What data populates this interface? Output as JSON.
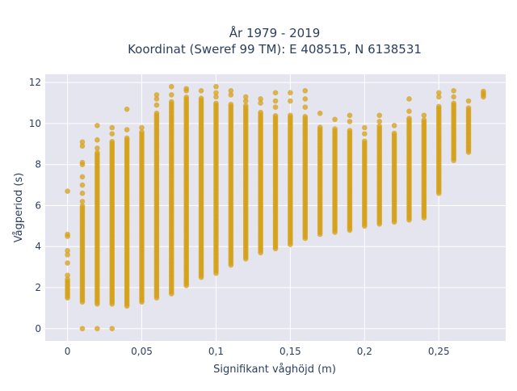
{
  "chart_data": {
    "type": "scatter",
    "title_lines": [
      "År 1979 - 2019",
      "Koordinat (Sweref 99 TM): E 408515, N 6138531"
    ],
    "xlabel": "Signifikant våghöjd (m)",
    "ylabel": "Vågperiod (s)",
    "xlim": [
      -0.015,
      0.295
    ],
    "ylim": [
      -0.6,
      12.4
    ],
    "x_ticks": [
      0,
      0.05,
      0.1,
      0.15,
      0.2,
      0.25
    ],
    "x_tick_labels": [
      "0",
      "0,05",
      "0,1",
      "0,15",
      "0,2",
      "0,25"
    ],
    "y_ticks": [
      0,
      2,
      4,
      6,
      8,
      10,
      12
    ],
    "y_tick_labels": [
      "0",
      "2",
      "4",
      "6",
      "8",
      "10",
      "12"
    ],
    "grid": true,
    "marker_color": "#D4A017",
    "plot_bg": "#E5E5EF",
    "columns": [
      {
        "x": 0.0,
        "min": 1.5,
        "max": 2.4,
        "outliers": [
          2.6,
          3.2,
          3.6,
          3.8,
          4.5,
          4.6,
          6.7
        ]
      },
      {
        "x": 0.01,
        "min": 1.3,
        "max": 6.0,
        "outliers": [
          0,
          6.2,
          6.6,
          7.0,
          7.4,
          8.0,
          8.1,
          8.9,
          9.1
        ]
      },
      {
        "x": 0.02,
        "min": 1.2,
        "max": 8.6,
        "outliers": [
          0,
          8.8,
          9.2,
          9.9
        ]
      },
      {
        "x": 0.03,
        "min": 1.2,
        "max": 9.2,
        "outliers": [
          0,
          9.5,
          9.8
        ]
      },
      {
        "x": 0.04,
        "min": 1.1,
        "max": 9.3,
        "outliers": [
          9.7,
          10.7
        ]
      },
      {
        "x": 0.05,
        "min": 1.3,
        "max": 9.6,
        "outliers": [
          9.8
        ]
      },
      {
        "x": 0.06,
        "min": 1.5,
        "max": 10.5,
        "outliers": [
          10.9,
          11.2,
          11.4
        ]
      },
      {
        "x": 0.07,
        "min": 1.7,
        "max": 11.1,
        "outliers": [
          11.4,
          11.8
        ]
      },
      {
        "x": 0.08,
        "min": 2.1,
        "max": 11.3,
        "outliers": [
          11.6,
          11.7
        ]
      },
      {
        "x": 0.09,
        "min": 2.5,
        "max": 11.3,
        "outliers": [
          11.6
        ]
      },
      {
        "x": 0.1,
        "min": 2.8,
        "max": 11.0,
        "outliers": [
          11.3,
          11.5,
          11.8,
          2.7
        ]
      },
      {
        "x": 0.11,
        "min": 3.1,
        "max": 11.0,
        "outliers": [
          11.4,
          11.6
        ]
      },
      {
        "x": 0.12,
        "min": 3.4,
        "max": 10.9,
        "outliers": [
          11.1,
          11.3
        ]
      },
      {
        "x": 0.13,
        "min": 3.7,
        "max": 10.6,
        "outliers": [
          11.0,
          11.2
        ]
      },
      {
        "x": 0.14,
        "min": 3.9,
        "max": 10.4,
        "outliers": [
          10.8,
          11.1,
          11.5
        ]
      },
      {
        "x": 0.15,
        "min": 4.1,
        "max": 10.4,
        "outliers": [
          11.1,
          11.5
        ]
      },
      {
        "x": 0.16,
        "min": 4.4,
        "max": 10.4,
        "outliers": [
          10.8,
          11.2,
          11.6
        ]
      },
      {
        "x": 0.17,
        "min": 4.6,
        "max": 9.9,
        "outliers": [
          10.5
        ]
      },
      {
        "x": 0.18,
        "min": 4.7,
        "max": 9.8,
        "outliers": [
          10.2
        ]
      },
      {
        "x": 0.19,
        "min": 4.8,
        "max": 9.7,
        "outliers": [
          10.1,
          10.4
        ]
      },
      {
        "x": 0.2,
        "min": 5.0,
        "max": 9.2,
        "outliers": [
          9.5,
          9.8
        ]
      },
      {
        "x": 0.21,
        "min": 5.1,
        "max": 9.9,
        "outliers": [
          10.1,
          10.4
        ]
      },
      {
        "x": 0.22,
        "min": 5.2,
        "max": 9.6,
        "outliers": [
          9.9
        ]
      },
      {
        "x": 0.23,
        "min": 5.3,
        "max": 10.3,
        "outliers": [
          10.6,
          11.2
        ]
      },
      {
        "x": 0.24,
        "min": 5.4,
        "max": 10.2,
        "outliers": [
          10.4
        ]
      },
      {
        "x": 0.25,
        "min": 6.6,
        "max": 10.9,
        "outliers": [
          11.3,
          11.5
        ]
      },
      {
        "x": 0.26,
        "min": 8.2,
        "max": 11.0,
        "outliers": [
          11.3,
          11.6
        ]
      },
      {
        "x": 0.27,
        "min": 8.6,
        "max": 10.8,
        "outliers": [
          11.1
        ]
      },
      {
        "x": 0.28,
        "min": 11.3,
        "max": 11.6,
        "outliers": []
      }
    ]
  }
}
